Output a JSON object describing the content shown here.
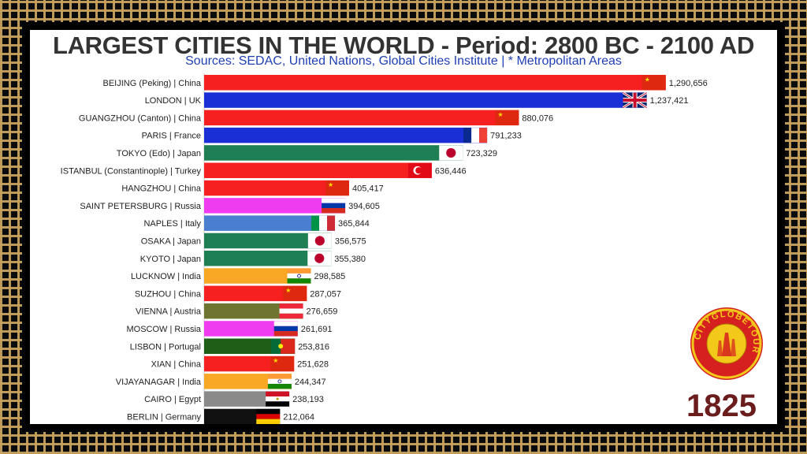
{
  "chart_data": {
    "type": "bar",
    "orientation": "horizontal",
    "title": "LARGEST CITIES IN THE WORLD - Period: 2800 BC - 2100 AD",
    "subtitle": "Sources: SEDAC, United Nations, Global Cities Institute | * Metropolitan Areas",
    "year": "1825",
    "xlim": [
      0,
      1300000
    ],
    "grid": false,
    "legend": "none",
    "categories": [
      "BEIJING (Peking) | China",
      "LONDON | UK",
      "GUANGZHOU (Canton) | China",
      "PARIS | France",
      "TOKYO (Edo) | Japan",
      "ISTANBUL (Constantinople) | Turkey",
      "HANGZHOU | China",
      "SAINT PETERSBURG | Russia",
      "NAPLES | Italy",
      "OSAKA | Japan",
      "KYOTO | Japan",
      "LUCKNOW | India",
      "SUZHOU | China",
      "VIENNA | Austria",
      "MOSCOW | Russia",
      "LISBON | Portugal",
      "XIAN | China",
      "VIJAYANAGAR | India",
      "CAIRO | Egypt",
      "BERLIN | Germany"
    ],
    "values": [
      1290656,
      1237421,
      880076,
      791233,
      723329,
      636446,
      405417,
      394605,
      365844,
      356575,
      355380,
      298585,
      287057,
      276659,
      261691,
      253816,
      251628,
      244347,
      238193,
      212064
    ],
    "value_labels": [
      "1,290,656",
      "1,237,421",
      "880,076",
      "791,233",
      "723,329",
      "636,446",
      "405,417",
      "394,605",
      "365,844",
      "356,575",
      "355,380",
      "298,585",
      "287,057",
      "276,659",
      "261,691",
      "253,816",
      "251,628",
      "244,347",
      "238,193",
      "212,064"
    ],
    "bar_colors": [
      "#f5201f",
      "#1b2fd6",
      "#f5201f",
      "#1b2fd6",
      "#1e7f55",
      "#f5201f",
      "#f5201f",
      "#f03cf0",
      "#4a7fd0",
      "#1e7f55",
      "#1e7f55",
      "#f9a825",
      "#f5201f",
      "#6f7431",
      "#f03cf0",
      "#1f5e16",
      "#f5201f",
      "#f9a825",
      "#8a8a8a",
      "#111111"
    ],
    "flags": [
      "china-flag",
      "uk-flag",
      "china-flag",
      "france-flag",
      "japan-flag",
      "turkey-flag",
      "china-flag",
      "russia-flag",
      "italy-flag",
      "japan-flag",
      "japan-flag",
      "india-flag",
      "china-flag",
      "austria-flag",
      "russia-flag",
      "portugal-flag",
      "china-flag",
      "india-flag",
      "egypt-flag",
      "germany-flag"
    ]
  },
  "logo": {
    "text": "CITYGLOBETOUR",
    "icon": "city-globe-tour-logo"
  },
  "colors": {
    "frame_gold": "#c7a25d",
    "title": "#333333",
    "subtitle": "#1f3fb5",
    "year": "#6b1d1d"
  }
}
